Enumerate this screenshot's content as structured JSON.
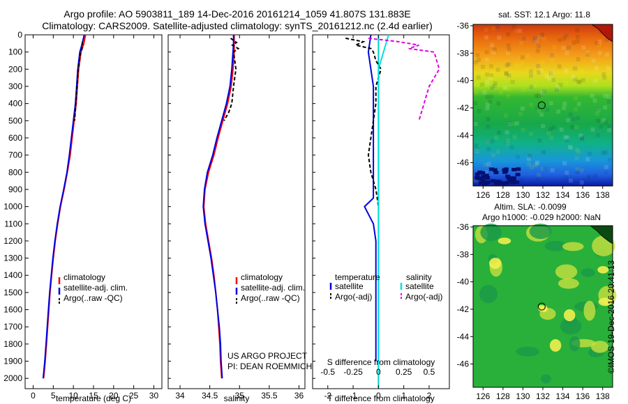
{
  "header": {
    "line1": "Argo profile: AO 5903811_189 14-Dec-2016 20161214_1059 41.807S 131.883E",
    "line2": "Climatology: CARS2009. Satellite-adjusted climatology: synTS_20161212.nc (2.4d earlier)"
  },
  "credit": "©IMOS 19-Dec-2016 20:41:13",
  "project": {
    "line1": "US ARGO PROJECT",
    "line2": "PI: DEAN ROEMMICH"
  },
  "colors": {
    "climatology": "#ff0000",
    "satellite": "#0000e0",
    "argo": "#000000",
    "sat_s": "#00e0e0",
    "argo_s": "#e000e0"
  },
  "chart_data": [
    {
      "type": "line",
      "xlabel": "temperature (deg C)",
      "xlim": [
        -2,
        32
      ],
      "ylim": [
        0,
        2060
      ],
      "xticks": [
        "0",
        "5",
        "10",
        "15",
        "20",
        "25",
        "30"
      ],
      "yticks": [
        "0",
        "100",
        "200",
        "300",
        "400",
        "500",
        "600",
        "700",
        "800",
        "900",
        "1000",
        "1100",
        "1200",
        "1300",
        "1400",
        "1500",
        "1600",
        "1700",
        "1800",
        "1900",
        "2000"
      ],
      "legend": [
        "climatology",
        "satellite-adj. clim.",
        "Argo(..raw -QC)"
      ],
      "series": [
        {
          "name": "climatology",
          "x": [
            13.0,
            12.6,
            11.9,
            11.3,
            11.0,
            10.7,
            10.2,
            9.7,
            9.2,
            8.5,
            7.7,
            6.8,
            6.1,
            5.5,
            5.0,
            4.6,
            4.2,
            3.9,
            3.6,
            3.3,
            3.0,
            2.6
          ],
          "y": [
            0,
            50,
            100,
            200,
            300,
            400,
            500,
            600,
            700,
            800,
            900,
            1000,
            1100,
            1200,
            1300,
            1400,
            1500,
            1600,
            1700,
            1800,
            1900,
            2000
          ]
        },
        {
          "name": "satellite-adj. clim.",
          "x": [
            12.7,
            12.2,
            11.6,
            11.1,
            10.8,
            10.5,
            10.0,
            9.5,
            9.0,
            8.4,
            7.6,
            6.7,
            6.0,
            5.4,
            4.9,
            4.5,
            4.1,
            3.8,
            3.5,
            3.2,
            2.9,
            2.5
          ],
          "y": [
            0,
            50,
            100,
            200,
            300,
            400,
            500,
            600,
            700,
            800,
            900,
            1000,
            1100,
            1200,
            1300,
            1400,
            1500,
            1600,
            1700,
            1800,
            1900,
            2000
          ]
        },
        {
          "name": "Argo(..raw -QC)",
          "x": [
            12.2,
            12.3,
            11.8,
            11.2,
            10.9,
            10.6,
            10.3
          ],
          "y": [
            40,
            70,
            100,
            200,
            300,
            400,
            500
          ]
        }
      ]
    },
    {
      "type": "line",
      "xlabel": "salinity",
      "xlim": [
        33.8,
        36.1
      ],
      "ylim": [
        0,
        2060
      ],
      "xticks": [
        "34",
        "34.5",
        "35",
        "35.5",
        "36"
      ],
      "legend": [
        "climatology",
        "satellite-adj. clim.",
        "Argo(..raw -QC)"
      ],
      "series": [
        {
          "name": "climatology",
          "x": [
            34.91,
            34.91,
            34.91,
            34.89,
            34.86,
            34.8,
            34.72,
            34.64,
            34.57,
            34.48,
            34.42,
            34.4,
            34.43,
            34.48,
            34.53,
            34.57,
            34.6,
            34.63,
            34.65,
            34.67,
            34.68,
            34.7
          ],
          "y": [
            0,
            50,
            100,
            200,
            300,
            400,
            500,
            600,
            700,
            800,
            900,
            1000,
            1100,
            1200,
            1300,
            1400,
            1500,
            1600,
            1700,
            1800,
            1900,
            2000
          ]
        },
        {
          "name": "satellite-adj. clim.",
          "x": [
            34.9,
            34.9,
            34.89,
            34.87,
            34.84,
            34.78,
            34.7,
            34.62,
            34.55,
            34.46,
            34.41,
            34.39,
            34.42,
            34.47,
            34.52,
            34.56,
            34.6,
            34.63,
            34.66,
            34.68,
            34.69,
            34.71
          ],
          "y": [
            0,
            50,
            100,
            200,
            300,
            400,
            500,
            600,
            700,
            800,
            900,
            1000,
            1100,
            1200,
            1300,
            1400,
            1500,
            1600,
            1700,
            1800,
            1900,
            2000
          ]
        },
        {
          "name": "Argo(..raw -QC)",
          "x": [
            34.85,
            34.95,
            34.88,
            34.98,
            34.9,
            34.94,
            34.9,
            34.87,
            34.82,
            34.74
          ],
          "y": [
            20,
            45,
            60,
            80,
            100,
            200,
            300,
            400,
            450,
            500
          ]
        }
      ]
    },
    {
      "type": "line",
      "xlabel": "T difference from climatology",
      "xlabel2": "S difference from climatology",
      "xlim": [
        -2.6,
        2.8
      ],
      "ylim": [
        0,
        2060
      ],
      "xticks": [
        "-2",
        "-1",
        "0",
        "1",
        "2"
      ],
      "xticks2": [
        "-0.5",
        "-0.25",
        "0",
        "0.25",
        "0.5"
      ],
      "legend_groups": [
        {
          "title": "temperature",
          "items": [
            "satellite",
            "Argo(-adj)"
          ]
        },
        {
          "title": "salinity",
          "items": [
            "satellite",
            "Argo(-adj)"
          ]
        }
      ],
      "series": [
        {
          "name": "satellite",
          "group": "temperature",
          "x": [
            -0.3,
            -0.4,
            -0.3,
            -0.2,
            -0.2,
            -0.2,
            -0.2,
            -0.2,
            -0.2,
            -0.2,
            -0.2,
            -0.55,
            -0.2,
            -0.1,
            -0.1,
            -0.1,
            -0.1,
            -0.1,
            -0.1,
            -0.1,
            -0.1
          ],
          "y": [
            0,
            100,
            200,
            300,
            400,
            500,
            600,
            700,
            800,
            900,
            950,
            1000,
            1100,
            1200,
            1300,
            1400,
            1500,
            1600,
            1700,
            1800,
            1900
          ]
        },
        {
          "name": "Argo(-adj)",
          "group": "temperature",
          "x": [
            -1.3,
            -0.6,
            -0.9,
            -0.3,
            -0.2,
            -0.1,
            0.1,
            0.0,
            -0.1,
            -0.1,
            -0.2,
            -0.3,
            -0.4,
            -0.3,
            -0.1,
            0.0
          ],
          "y": [
            20,
            40,
            60,
            80,
            100,
            150,
            200,
            250,
            300,
            400,
            500,
            600,
            700,
            800,
            900,
            1000
          ]
        },
        {
          "name": "satellite",
          "group": "salinity",
          "x": [
            0.1,
            0.05,
            0.0,
            0.0,
            0.0,
            0.0,
            0.0,
            0.0,
            0.0,
            0.0,
            0.0,
            0.0,
            0.0,
            0.0,
            0.0,
            0.0,
            0.0,
            0.0,
            0.0,
            0.0,
            0.0
          ],
          "y": [
            0,
            100,
            200,
            300,
            400,
            500,
            600,
            700,
            800,
            900,
            1000,
            1100,
            1200,
            1300,
            1400,
            1500,
            1600,
            1700,
            1800,
            1900,
            2000
          ]
        },
        {
          "name": "Argo(-adj)",
          "group": "salinity",
          "x": [
            -0.1,
            0.2,
            0.4,
            0.3,
            0.55,
            0.6,
            0.5,
            0.45,
            0.4
          ],
          "y": [
            20,
            40,
            60,
            80,
            100,
            200,
            300,
            400,
            500
          ]
        }
      ]
    },
    {
      "type": "heatmap",
      "title": "sat. SST: 12.1  Argo: 11.8",
      "xlim": [
        125,
        139
      ],
      "ylim": [
        -47.7,
        -35.9
      ],
      "xticks": [
        "126",
        "128",
        "130",
        "132",
        "134",
        "136",
        "138"
      ],
      "yticks": [
        "-36",
        "-38",
        "-40",
        "-42",
        "-44",
        "-46"
      ],
      "marker": {
        "lon": 131.883,
        "lat": -41.807
      }
    },
    {
      "type": "heatmap",
      "title": "Altim. SLA: -0.0099",
      "subtitle": "Argo h1000: -0.029  h2000: NaN",
      "xlim": [
        125,
        139
      ],
      "ylim": [
        -47.7,
        -35.9
      ],
      "xticks": [
        "126",
        "128",
        "130",
        "132",
        "134",
        "136",
        "138"
      ],
      "yticks": [
        "-36",
        "-38",
        "-40",
        "-42",
        "-44",
        "-46"
      ],
      "marker": {
        "lon": 131.883,
        "lat": -41.807
      }
    }
  ]
}
